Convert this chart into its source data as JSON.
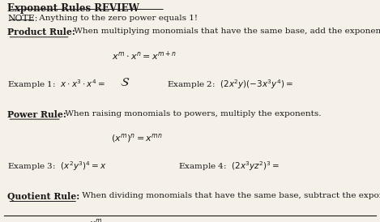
{
  "bg_color": "#f5f0e8",
  "text_color": "#1a1a1a",
  "title": "Exponent Rules REVIEW",
  "note": "NOTE: Anything to the zero power equals 1!",
  "product_rule_label": "Product Rule:",
  "product_rule_text": " When multiplying monomials that have the same base, add the exponents.",
  "power_rule_label": "Power Rule:",
  "power_rule_text": " When raising monomials to powers, multiply the exponents.",
  "quotient_rule_label": "Quotient Rule:",
  "quotient_rule_text": " When dividing monomials that have the same base, subtract the exponents."
}
